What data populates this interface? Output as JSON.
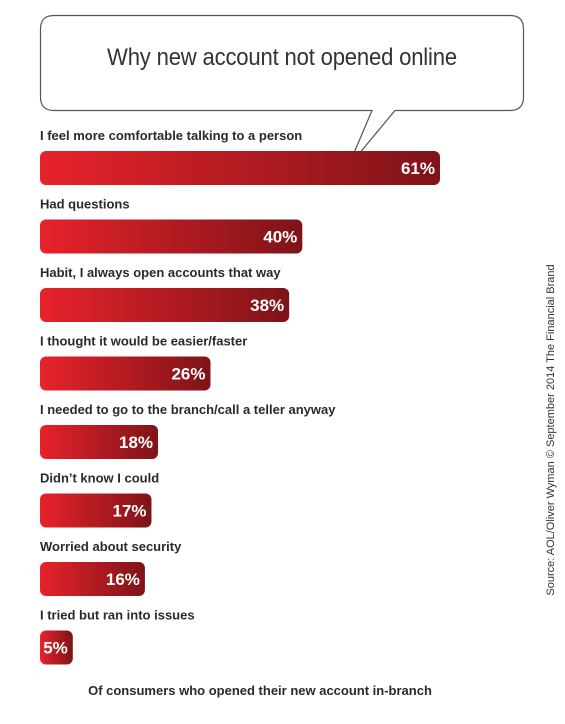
{
  "chart_data": {
    "type": "bar",
    "orientation": "horizontal",
    "title": "Why new account not opened online",
    "categories": [
      "I feel more comfortable talking to a person",
      "Had questions",
      "Habit, I always open accounts that way",
      "I thought it would be easier/faster",
      "I needed to go to the branch/call a teller anyway",
      "Didn’t know I could",
      "Worried about security",
      "I tried but ran into issues"
    ],
    "values": [
      61,
      40,
      38,
      26,
      18,
      17,
      16,
      5
    ],
    "value_labels": [
      "61%",
      "40%",
      "38%",
      "26%",
      "18%",
      "17%",
      "16%",
      "5%"
    ],
    "unit": "%",
    "xlim": [
      0,
      100
    ],
    "grid": false,
    "legend": "none",
    "footer": "Of consumers who opened their new account in-branch",
    "source": "Source: AOL/Oliver Wyman © September 2014 The Financial Brand",
    "colors": {
      "bar_light": "#e8222b",
      "bar_dark": "#7e1418",
      "value_text": "#ffffff"
    }
  }
}
